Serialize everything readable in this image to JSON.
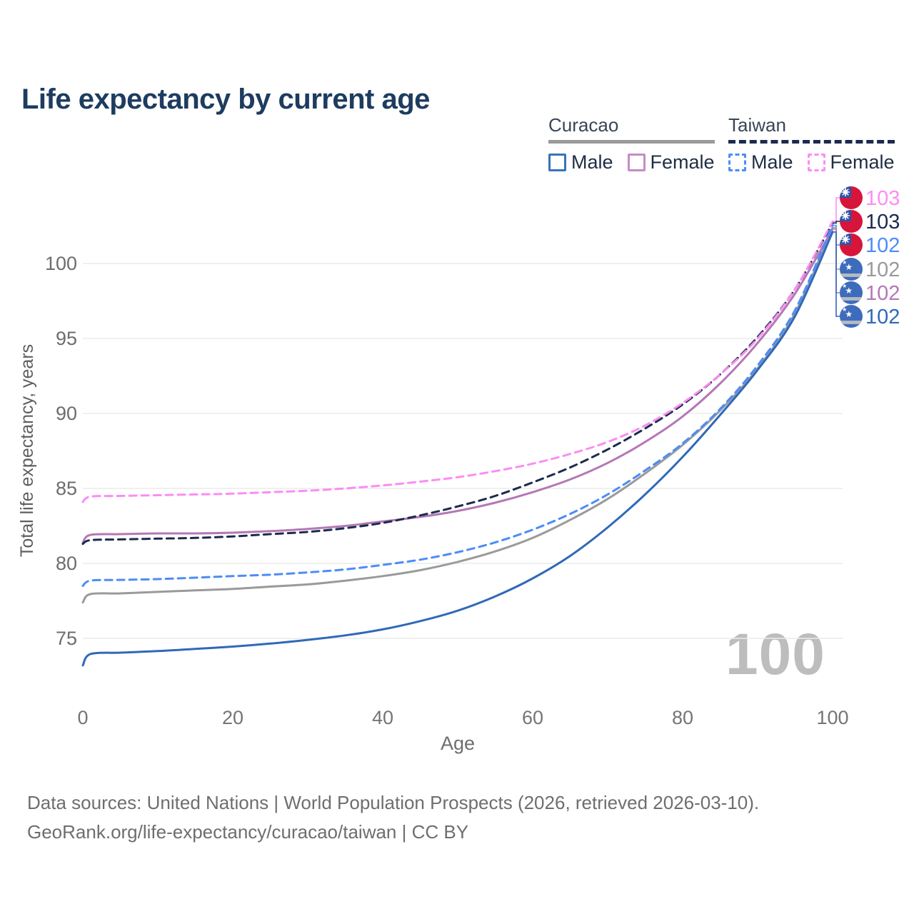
{
  "title": "Life expectancy by current age",
  "legend": {
    "groups": [
      {
        "label": "Curacao",
        "line_style": "solid",
        "underline_color": "#9a9a9a",
        "items": [
          {
            "label": "Male",
            "color": "#3a72bc"
          },
          {
            "label": "Female",
            "color": "#c68bc7"
          }
        ]
      },
      {
        "label": "Taiwan",
        "line_style": "dashed",
        "underline_color": "#1b2b4d",
        "items": [
          {
            "label": "Male",
            "color": "#4d8cf8"
          },
          {
            "label": "Female",
            "color": "#fb8df3"
          }
        ]
      }
    ]
  },
  "watermark": "100",
  "footer": {
    "line1": "Data sources: United Nations | World Population Prospects (2026, retrieved 2026-03-10).",
    "line2": "GeoRank.org/life-expectancy/curacao/taiwan | CC BY"
  },
  "chart_data": {
    "type": "line",
    "title": "Life expectancy by current age",
    "xlabel": "Age",
    "ylabel": "Total life expectancy, years",
    "x_ticks": [
      0,
      20,
      40,
      60,
      80,
      100
    ],
    "y_ticks": [
      75,
      80,
      85,
      90,
      95,
      100
    ],
    "xlim": [
      0,
      100
    ],
    "ylim": [
      73,
      103.5
    ],
    "grid": "horizontal",
    "legend_position": "top-right",
    "x": [
      0,
      1,
      5,
      10,
      15,
      20,
      25,
      30,
      35,
      40,
      45,
      50,
      55,
      60,
      65,
      70,
      75,
      80,
      85,
      90,
      95,
      100
    ],
    "series": [
      {
        "name": "Taiwan Female",
        "country": "Taiwan",
        "sex": "Female",
        "color": "#fb8df3",
        "dash": "dashed",
        "flag": "taiwan-flag",
        "end_label": "103",
        "values": [
          84.1,
          84.45,
          84.5,
          84.55,
          84.6,
          84.65,
          84.75,
          84.85,
          85.0,
          85.2,
          85.45,
          85.75,
          86.15,
          86.65,
          87.3,
          88.1,
          89.2,
          90.7,
          92.6,
          95.0,
          98.3,
          102.8
        ]
      },
      {
        "name": "Taiwan Both sexes",
        "country": "Taiwan",
        "sex": "Both",
        "color": "#1b2b4d",
        "dash": "dashed",
        "flag": "taiwan-flag",
        "end_label": "103",
        "values": [
          81.3,
          81.55,
          81.6,
          81.65,
          81.7,
          81.8,
          81.95,
          82.1,
          82.35,
          82.7,
          83.2,
          83.8,
          84.5,
          85.4,
          86.4,
          87.6,
          89.0,
          90.6,
          92.6,
          95.1,
          98.3,
          102.7
        ]
      },
      {
        "name": "Taiwan Male",
        "country": "Taiwan",
        "sex": "Male",
        "color": "#4d8cf8",
        "dash": "dashed",
        "flag": "taiwan-flag",
        "end_label": "102",
        "values": [
          78.5,
          78.85,
          78.9,
          78.95,
          79.05,
          79.15,
          79.25,
          79.4,
          79.6,
          79.9,
          80.25,
          80.75,
          81.4,
          82.25,
          83.3,
          84.6,
          86.2,
          88.0,
          90.3,
          93.2,
          96.9,
          102.55
        ]
      },
      {
        "name": "Curacao Both sexes",
        "country": "Curacao",
        "sex": "Both",
        "color": "#9a9a9a",
        "dash": "solid",
        "flag": "curacao-flag",
        "end_label": "102",
        "values": [
          77.4,
          77.95,
          78.0,
          78.1,
          78.2,
          78.3,
          78.45,
          78.6,
          78.85,
          79.15,
          79.55,
          80.1,
          80.8,
          81.7,
          82.9,
          84.3,
          86.0,
          87.9,
          90.2,
          93.0,
          96.7,
          102.4
        ]
      },
      {
        "name": "Curacao Female",
        "country": "Curacao",
        "sex": "Female",
        "color": "#b478b5",
        "dash": "solid",
        "flag": "curacao-flag",
        "end_label": "102",
        "values": [
          81.4,
          81.9,
          81.95,
          82.0,
          82.0,
          82.05,
          82.15,
          82.3,
          82.5,
          82.8,
          83.1,
          83.5,
          84.05,
          84.75,
          85.6,
          86.7,
          88.1,
          89.8,
          92.0,
          94.7,
          98.0,
          102.3
        ]
      },
      {
        "name": "Curacao Male",
        "country": "Curacao",
        "sex": "Male",
        "color": "#3069b8",
        "dash": "solid",
        "flag": "curacao-flag",
        "end_label": "102",
        "values": [
          73.2,
          73.95,
          74.05,
          74.15,
          74.3,
          74.45,
          74.65,
          74.9,
          75.2,
          75.6,
          76.15,
          76.85,
          77.8,
          79.0,
          80.5,
          82.4,
          84.6,
          87.1,
          89.9,
          92.9,
          96.5,
          102.1
        ]
      }
    ]
  }
}
